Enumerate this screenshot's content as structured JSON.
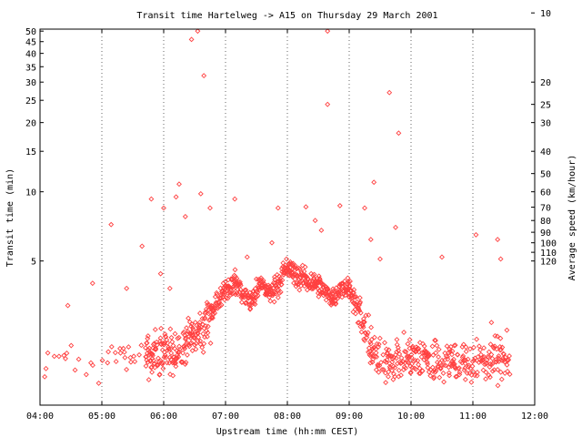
{
  "chart_data": {
    "type": "scatter",
    "title": "Transit time Hartelweg -> A15 on Thursday 29 March 2001",
    "xlabel": "Upstream time (hh:mm CEST)",
    "ylabel": "Transit time (min)",
    "y2label": "Average speed (km/hour)",
    "x_tick_labels": [
      "04:00",
      "05:00",
      "06:00",
      "07:00",
      "08:00",
      "09:00",
      "10:00",
      "11:00",
      "12:00"
    ],
    "xlim_hours": [
      4,
      12
    ],
    "y_scale": "log",
    "ylim_min": [
      1.18,
      51
    ],
    "y_tick_values": [
      5,
      10,
      15,
      20,
      25,
      30,
      35,
      40,
      45,
      50
    ],
    "y2_tick_values": [
      10,
      20,
      25,
      30,
      40,
      50,
      60,
      70,
      80,
      90,
      100,
      110,
      120
    ],
    "point_color": "#ff4040",
    "marker": "diamond",
    "grid": "dotted at x ticks",
    "series": [
      {
        "name": "",
        "profile_hours": [
          4.0,
          5.0,
          5.5,
          6.0,
          6.3,
          6.5,
          6.7,
          6.85,
          7.0,
          7.15,
          7.3,
          7.4,
          7.6,
          7.7,
          7.85,
          8.0,
          8.2,
          8.4,
          8.6,
          8.75,
          8.9,
          9.05,
          9.15,
          9.25,
          9.4,
          10.0,
          11.0,
          11.6
        ],
        "profile_minutes": [
          1.85,
          1.9,
          1.85,
          1.95,
          2.1,
          2.35,
          2.65,
          3.3,
          3.8,
          4.0,
          3.6,
          3.3,
          4.0,
          3.6,
          4.0,
          4.6,
          4.2,
          4.05,
          3.7,
          3.5,
          3.9,
          3.6,
          3.0,
          2.5,
          1.9,
          1.85,
          1.85,
          1.85
        ],
        "outliers": [
          [
            4.45,
            3.2
          ],
          [
            4.85,
            4.0
          ],
          [
            5.15,
            7.2
          ],
          [
            5.4,
            3.8
          ],
          [
            5.65,
            5.8
          ],
          [
            5.8,
            9.3
          ],
          [
            5.95,
            4.4
          ],
          [
            6.0,
            8.5
          ],
          [
            6.1,
            3.8
          ],
          [
            6.2,
            9.5
          ],
          [
            6.25,
            10.8
          ],
          [
            6.35,
            7.8
          ],
          [
            6.45,
            46
          ],
          [
            6.55,
            50
          ],
          [
            6.6,
            9.8
          ],
          [
            6.65,
            32
          ],
          [
            6.75,
            8.5
          ],
          [
            7.15,
            9.3
          ],
          [
            7.35,
            5.2
          ],
          [
            7.75,
            6.0
          ],
          [
            7.85,
            8.5
          ],
          [
            8.3,
            8.6
          ],
          [
            8.45,
            7.5
          ],
          [
            8.55,
            6.8
          ],
          [
            8.65,
            24
          ],
          [
            8.65,
            50
          ],
          [
            8.85,
            8.7
          ],
          [
            9.25,
            8.5
          ],
          [
            9.35,
            6.2
          ],
          [
            9.4,
            11
          ],
          [
            9.5,
            5.1
          ],
          [
            9.65,
            27
          ],
          [
            9.75,
            7.0
          ],
          [
            9.8,
            18
          ],
          [
            10.5,
            5.2
          ],
          [
            11.05,
            6.5
          ],
          [
            11.4,
            6.2
          ],
          [
            11.45,
            5.1
          ],
          [
            11.3,
            2.7
          ],
          [
            11.55,
            2.5
          ]
        ]
      }
    ]
  }
}
